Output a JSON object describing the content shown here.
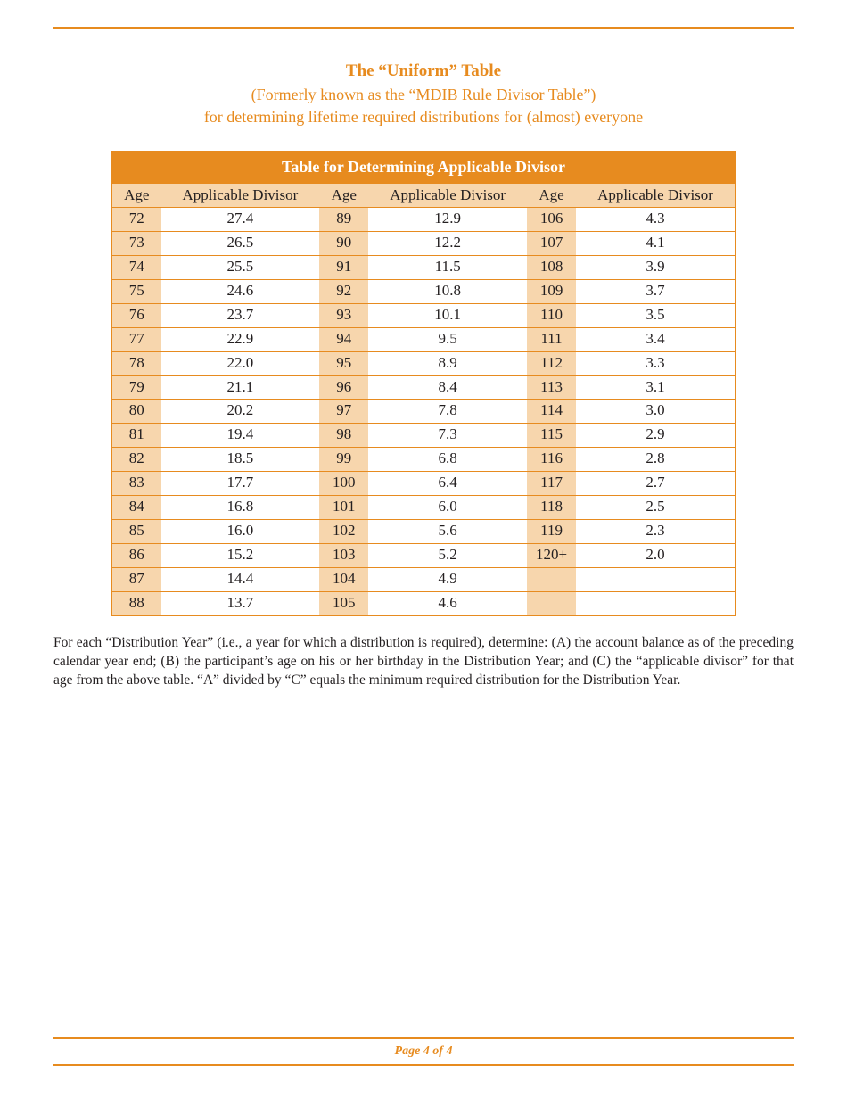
{
  "heading": {
    "main": "The “Uniform” Table",
    "sub1": "(Formerly known as the “MDIB Rule Divisor Table”)",
    "sub2": "for determining lifetime required distributions for (almost) everyone"
  },
  "table": {
    "banner": "Table for Determining Applicable Divisor",
    "col_age": "Age",
    "col_div": "Applicable Divisor",
    "columns": [
      {
        "rows": [
          {
            "age": "72",
            "div": "27.4"
          },
          {
            "age": "73",
            "div": "26.5"
          },
          {
            "age": "74",
            "div": "25.5"
          },
          {
            "age": "75",
            "div": "24.6"
          },
          {
            "age": "76",
            "div": "23.7"
          },
          {
            "age": "77",
            "div": "22.9"
          },
          {
            "age": "78",
            "div": "22.0"
          },
          {
            "age": "79",
            "div": "21.1"
          },
          {
            "age": "80",
            "div": "20.2"
          },
          {
            "age": "81",
            "div": "19.4"
          },
          {
            "age": "82",
            "div": "18.5"
          },
          {
            "age": "83",
            "div": "17.7"
          },
          {
            "age": "84",
            "div": "16.8"
          },
          {
            "age": "85",
            "div": "16.0"
          },
          {
            "age": "86",
            "div": "15.2"
          },
          {
            "age": "87",
            "div": "14.4"
          },
          {
            "age": "88",
            "div": "13.7"
          }
        ]
      },
      {
        "rows": [
          {
            "age": "89",
            "div": "12.9"
          },
          {
            "age": "90",
            "div": "12.2"
          },
          {
            "age": "91",
            "div": "11.5"
          },
          {
            "age": "92",
            "div": "10.8"
          },
          {
            "age": "93",
            "div": "10.1"
          },
          {
            "age": "94",
            "div": "9.5"
          },
          {
            "age": "95",
            "div": "8.9"
          },
          {
            "age": "96",
            "div": "8.4"
          },
          {
            "age": "97",
            "div": "7.8"
          },
          {
            "age": "98",
            "div": "7.3"
          },
          {
            "age": "99",
            "div": "6.8"
          },
          {
            "age": "100",
            "div": "6.4"
          },
          {
            "age": "101",
            "div": "6.0"
          },
          {
            "age": "102",
            "div": "5.6"
          },
          {
            "age": "103",
            "div": "5.2"
          },
          {
            "age": "104",
            "div": "4.9"
          },
          {
            "age": "105",
            "div": "4.6"
          }
        ]
      },
      {
        "rows": [
          {
            "age": "106",
            "div": "4.3"
          },
          {
            "age": "107",
            "div": "4.1"
          },
          {
            "age": "108",
            "div": "3.9"
          },
          {
            "age": "109",
            "div": "3.7"
          },
          {
            "age": "110",
            "div": "3.5"
          },
          {
            "age": "111",
            "div": "3.4"
          },
          {
            "age": "112",
            "div": "3.3"
          },
          {
            "age": "113",
            "div": "3.1"
          },
          {
            "age": "114",
            "div": "3.0"
          },
          {
            "age": "115",
            "div": "2.9"
          },
          {
            "age": "116",
            "div": "2.8"
          },
          {
            "age": "117",
            "div": "2.7"
          },
          {
            "age": "118",
            "div": "2.5"
          },
          {
            "age": "119",
            "div": "2.3"
          },
          {
            "age": "120+",
            "div": "2.0"
          },
          {
            "age": "",
            "div": ""
          },
          {
            "age": "",
            "div": ""
          }
        ]
      }
    ]
  },
  "note": "For each “Distribution Year” (i.e., a year for which a distribution is required), determine: (A) the account balance as of the preceding calendar year end; (B) the participant’s age on his or her birthday in the Distribution Year; and (C) the “applicable divisor” for that age from the above table.  “A” divided by “C” equals the minimum required distribution for the Distribution Year.",
  "footer": {
    "page_label": "Page 4 of 4"
  },
  "colors": {
    "accent": "#e78b1f",
    "header_fill": "#f7d6ad",
    "text": "#231f20",
    "background": "#ffffff"
  }
}
